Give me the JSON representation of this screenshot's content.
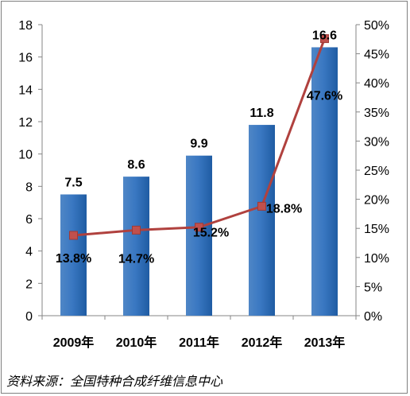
{
  "chart_data": {
    "type": "bar",
    "categories": [
      "2009年",
      "2010年",
      "2011年",
      "2012年",
      "2013年"
    ],
    "series": [
      {
        "type": "bar",
        "axis": "left",
        "values": [
          7.5,
          8.6,
          9.9,
          11.8,
          16.6
        ]
      },
      {
        "type": "line",
        "axis": "right",
        "values": [
          13.8,
          14.7,
          15.2,
          18.8,
          47.6
        ]
      }
    ],
    "bar_labels": [
      "7.5",
      "8.6",
      "9.9",
      "11.8",
      "16.6"
    ],
    "line_labels": [
      "13.8%",
      "14.7%",
      "15.2%",
      "18.8%",
      "47.6%"
    ],
    "y_left": {
      "min": 0,
      "max": 18,
      "step": 2
    },
    "y_right": {
      "min": 0,
      "max": 50,
      "step": 5,
      "format": "percent"
    },
    "grid": false,
    "colors": {
      "bar": "#2e6db5",
      "bar_light": "#5b95d6",
      "line": "#b0413e",
      "marker": "#c0504d"
    }
  },
  "source": "资料来源：全国特种合成纤维信息中心"
}
